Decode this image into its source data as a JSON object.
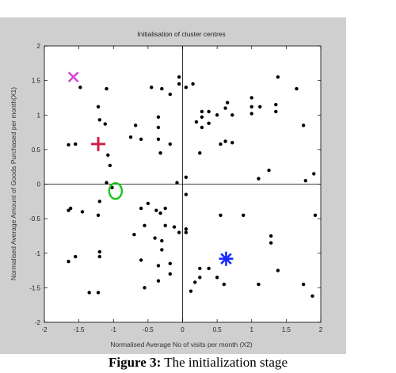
{
  "chart_data": {
    "type": "scatter",
    "title": "Initialisation of cluster centres",
    "xlabel": "Normalised Average No of visits per month (X2)",
    "ylabel": "Normalised Average Amount of Goods Purchased per month(X1)",
    "xlim": [
      -2,
      2
    ],
    "ylim": [
      -2,
      2
    ],
    "xticks": [
      "-2",
      "-1.5",
      "-1",
      "-0.5",
      "0",
      "0.5",
      "1",
      "1.5",
      "2"
    ],
    "yticks": [
      "2",
      "1.5",
      "1",
      "0.5",
      "0",
      "-0.5",
      "-1",
      "-1.5",
      "-2"
    ],
    "grid": false,
    "reference_lines": {
      "x": 0,
      "y": 0
    },
    "points": [
      [
        -1.65,
        0.57
      ],
      [
        -1.55,
        0.58
      ],
      [
        -1.48,
        1.4
      ],
      [
        -1.22,
        1.12
      ],
      [
        -1.2,
        0.93
      ],
      [
        -1.1,
        1.38
      ],
      [
        -1.12,
        0.87
      ],
      [
        -1.08,
        0.42
      ],
      [
        -1.05,
        0.27
      ],
      [
        -1.1,
        0.02
      ],
      [
        -1.2,
        -0.25
      ],
      [
        -1.02,
        -0.05
      ],
      [
        -0.75,
        0.68
      ],
      [
        -0.68,
        0.85
      ],
      [
        -0.6,
        0.65
      ],
      [
        -0.45,
        1.4
      ],
      [
        -0.3,
        1.38
      ],
      [
        -0.35,
        0.97
      ],
      [
        -0.35,
        0.82
      ],
      [
        -0.35,
        0.65
      ],
      [
        -0.32,
        0.45
      ],
      [
        -0.18,
        1.3
      ],
      [
        -0.05,
        1.55
      ],
      [
        -0.05,
        1.45
      ],
      [
        -0.18,
        0.58
      ],
      [
        -0.08,
        0.02
      ],
      [
        0.05,
        1.4
      ],
      [
        0.15,
        1.45
      ],
      [
        0.2,
        0.9
      ],
      [
        0.05,
        0.1
      ],
      [
        -1.65,
        -0.38
      ],
      [
        -1.62,
        -0.35
      ],
      [
        -1.45,
        -0.4
      ],
      [
        -1.22,
        -0.45
      ],
      [
        -1.2,
        -0.98
      ],
      [
        -1.2,
        -1.05
      ],
      [
        -1.55,
        -1.05
      ],
      [
        -1.65,
        -1.12
      ],
      [
        -1.35,
        -1.57
      ],
      [
        -1.22,
        -1.57
      ],
      [
        -0.6,
        -0.35
      ],
      [
        -0.5,
        -0.28
      ],
      [
        -0.55,
        -0.6
      ],
      [
        -0.7,
        -0.73
      ],
      [
        -0.6,
        -1.1
      ],
      [
        -0.55,
        -1.5
      ],
      [
        -0.38,
        -0.38
      ],
      [
        -0.32,
        -0.42
      ],
      [
        -0.25,
        -0.35
      ],
      [
        -0.25,
        -0.6
      ],
      [
        -0.12,
        -0.62
      ],
      [
        -0.05,
        -0.7
      ],
      [
        -0.4,
        -0.78
      ],
      [
        -0.3,
        -0.82
      ],
      [
        -0.3,
        -0.95
      ],
      [
        -0.35,
        -1.18
      ],
      [
        -0.35,
        -1.4
      ],
      [
        -0.18,
        -1.15
      ],
      [
        -0.18,
        -1.3
      ],
      [
        0.05,
        -0.65
      ],
      [
        0.05,
        -0.7
      ],
      [
        0.05,
        -0.15
      ],
      [
        0.12,
        -1.55
      ],
      [
        0.18,
        -1.42
      ],
      [
        0.25,
        -1.35
      ],
      [
        0.25,
        -1.22
      ],
      [
        0.38,
        -1.22
      ],
      [
        0.5,
        -1.35
      ],
      [
        0.6,
        -1.45
      ],
      [
        0.55,
        -0.45
      ],
      [
        0.88,
        -0.45
      ],
      [
        1.28,
        -0.75
      ],
      [
        1.28,
        -0.85
      ],
      [
        1.1,
        -1.45
      ],
      [
        1.38,
        -1.25
      ],
      [
        1.75,
        -1.45
      ],
      [
        1.88,
        -1.62
      ],
      [
        1.92,
        -0.45
      ],
      [
        1.78,
        0.05
      ],
      [
        1.9,
        0.15
      ],
      [
        1.25,
        0.2
      ],
      [
        1.1,
        0.08
      ],
      [
        0.55,
        0.58
      ],
      [
        0.62,
        0.62
      ],
      [
        0.72,
        0.6
      ],
      [
        0.25,
        0.45
      ],
      [
        0.28,
        0.97
      ],
      [
        0.28,
        1.05
      ],
      [
        0.28,
        0.82
      ],
      [
        0.38,
        0.88
      ],
      [
        0.38,
        1.05
      ],
      [
        0.5,
        1.0
      ],
      [
        0.62,
        1.1
      ],
      [
        0.72,
        1.0
      ],
      [
        0.65,
        1.18
      ],
      [
        1.0,
        1.25
      ],
      [
        1.0,
        1.12
      ],
      [
        1.0,
        1.02
      ],
      [
        1.12,
        1.12
      ],
      [
        1.35,
        1.15
      ],
      [
        1.35,
        1.05
      ],
      [
        1.38,
        1.55
      ],
      [
        1.65,
        1.38
      ],
      [
        1.75,
        0.85
      ]
    ],
    "centres": [
      {
        "x": -1.58,
        "y": 1.55,
        "marker": "x",
        "color": "#d247d6"
      },
      {
        "x": -1.22,
        "y": 0.58,
        "marker": "+",
        "color": "#cc2244"
      },
      {
        "x": -0.97,
        "y": -0.1,
        "marker": "o",
        "color": "#19c419"
      },
      {
        "x": 0.63,
        "y": -1.08,
        "marker": "*",
        "color": "#1a2bff"
      }
    ]
  },
  "caption": {
    "label": "Figure 3:",
    "text": " The initialization stage"
  }
}
